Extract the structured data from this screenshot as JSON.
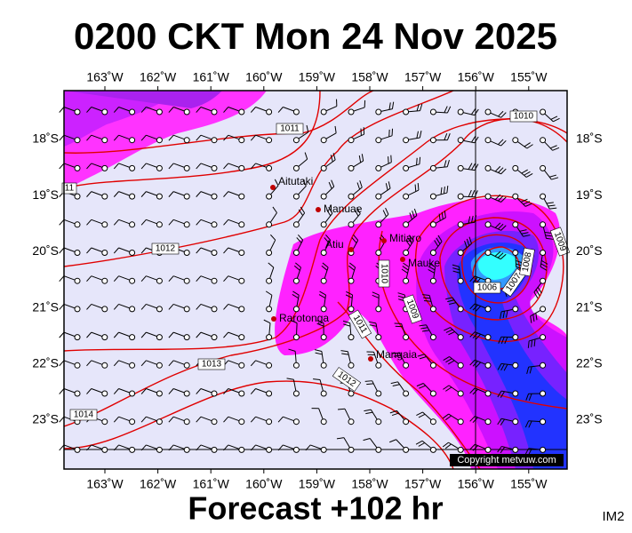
{
  "header": {
    "title": "0200 CKT Mon 24 Nov 2025"
  },
  "footer": {
    "forecast": "Forecast +102 hr",
    "code": "IM2"
  },
  "map": {
    "lon_labels": [
      "163˚W",
      "162˚W",
      "161˚W",
      "160˚W",
      "159˚W",
      "158˚W",
      "157˚W",
      "156˚W",
      "155˚W"
    ],
    "lat_labels": [
      "18˚S",
      "19˚S",
      "20˚S",
      "21˚S",
      "22˚S",
      "23˚S"
    ],
    "places": [
      "Aitutaki",
      "Manuae",
      "Mitiaro",
      "Atiu",
      "Mauke",
      "Rarotonga",
      "Mangaia"
    ],
    "isobar_labels": [
      "1010",
      "1011",
      "1012",
      "11",
      "1013",
      "1014",
      "1010",
      "1009",
      "1011",
      "1012",
      "1006",
      "1007",
      "1008",
      "1009"
    ],
    "copyright": "Copyright metvuw.com"
  }
}
